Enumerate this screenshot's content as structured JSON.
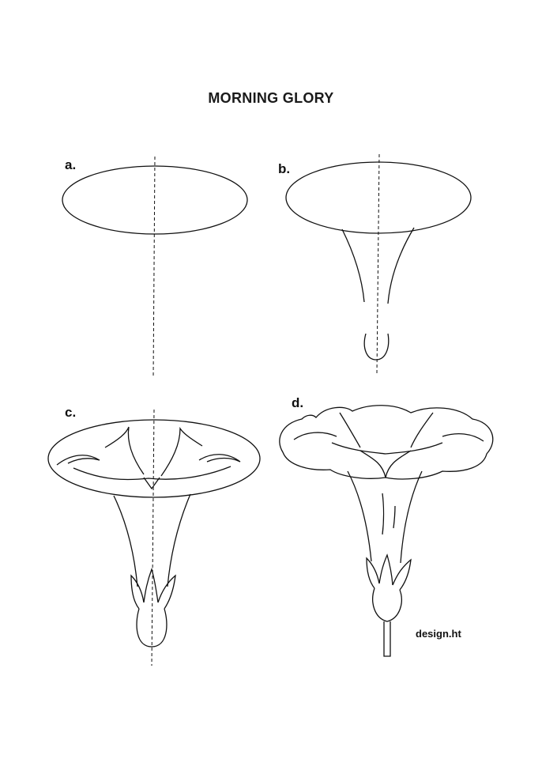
{
  "title": "MORNING GLORY",
  "steps": [
    {
      "label": "a."
    },
    {
      "label": "b."
    },
    {
      "label": "c."
    },
    {
      "label": "d."
    }
  ],
  "credit": "design.ht"
}
